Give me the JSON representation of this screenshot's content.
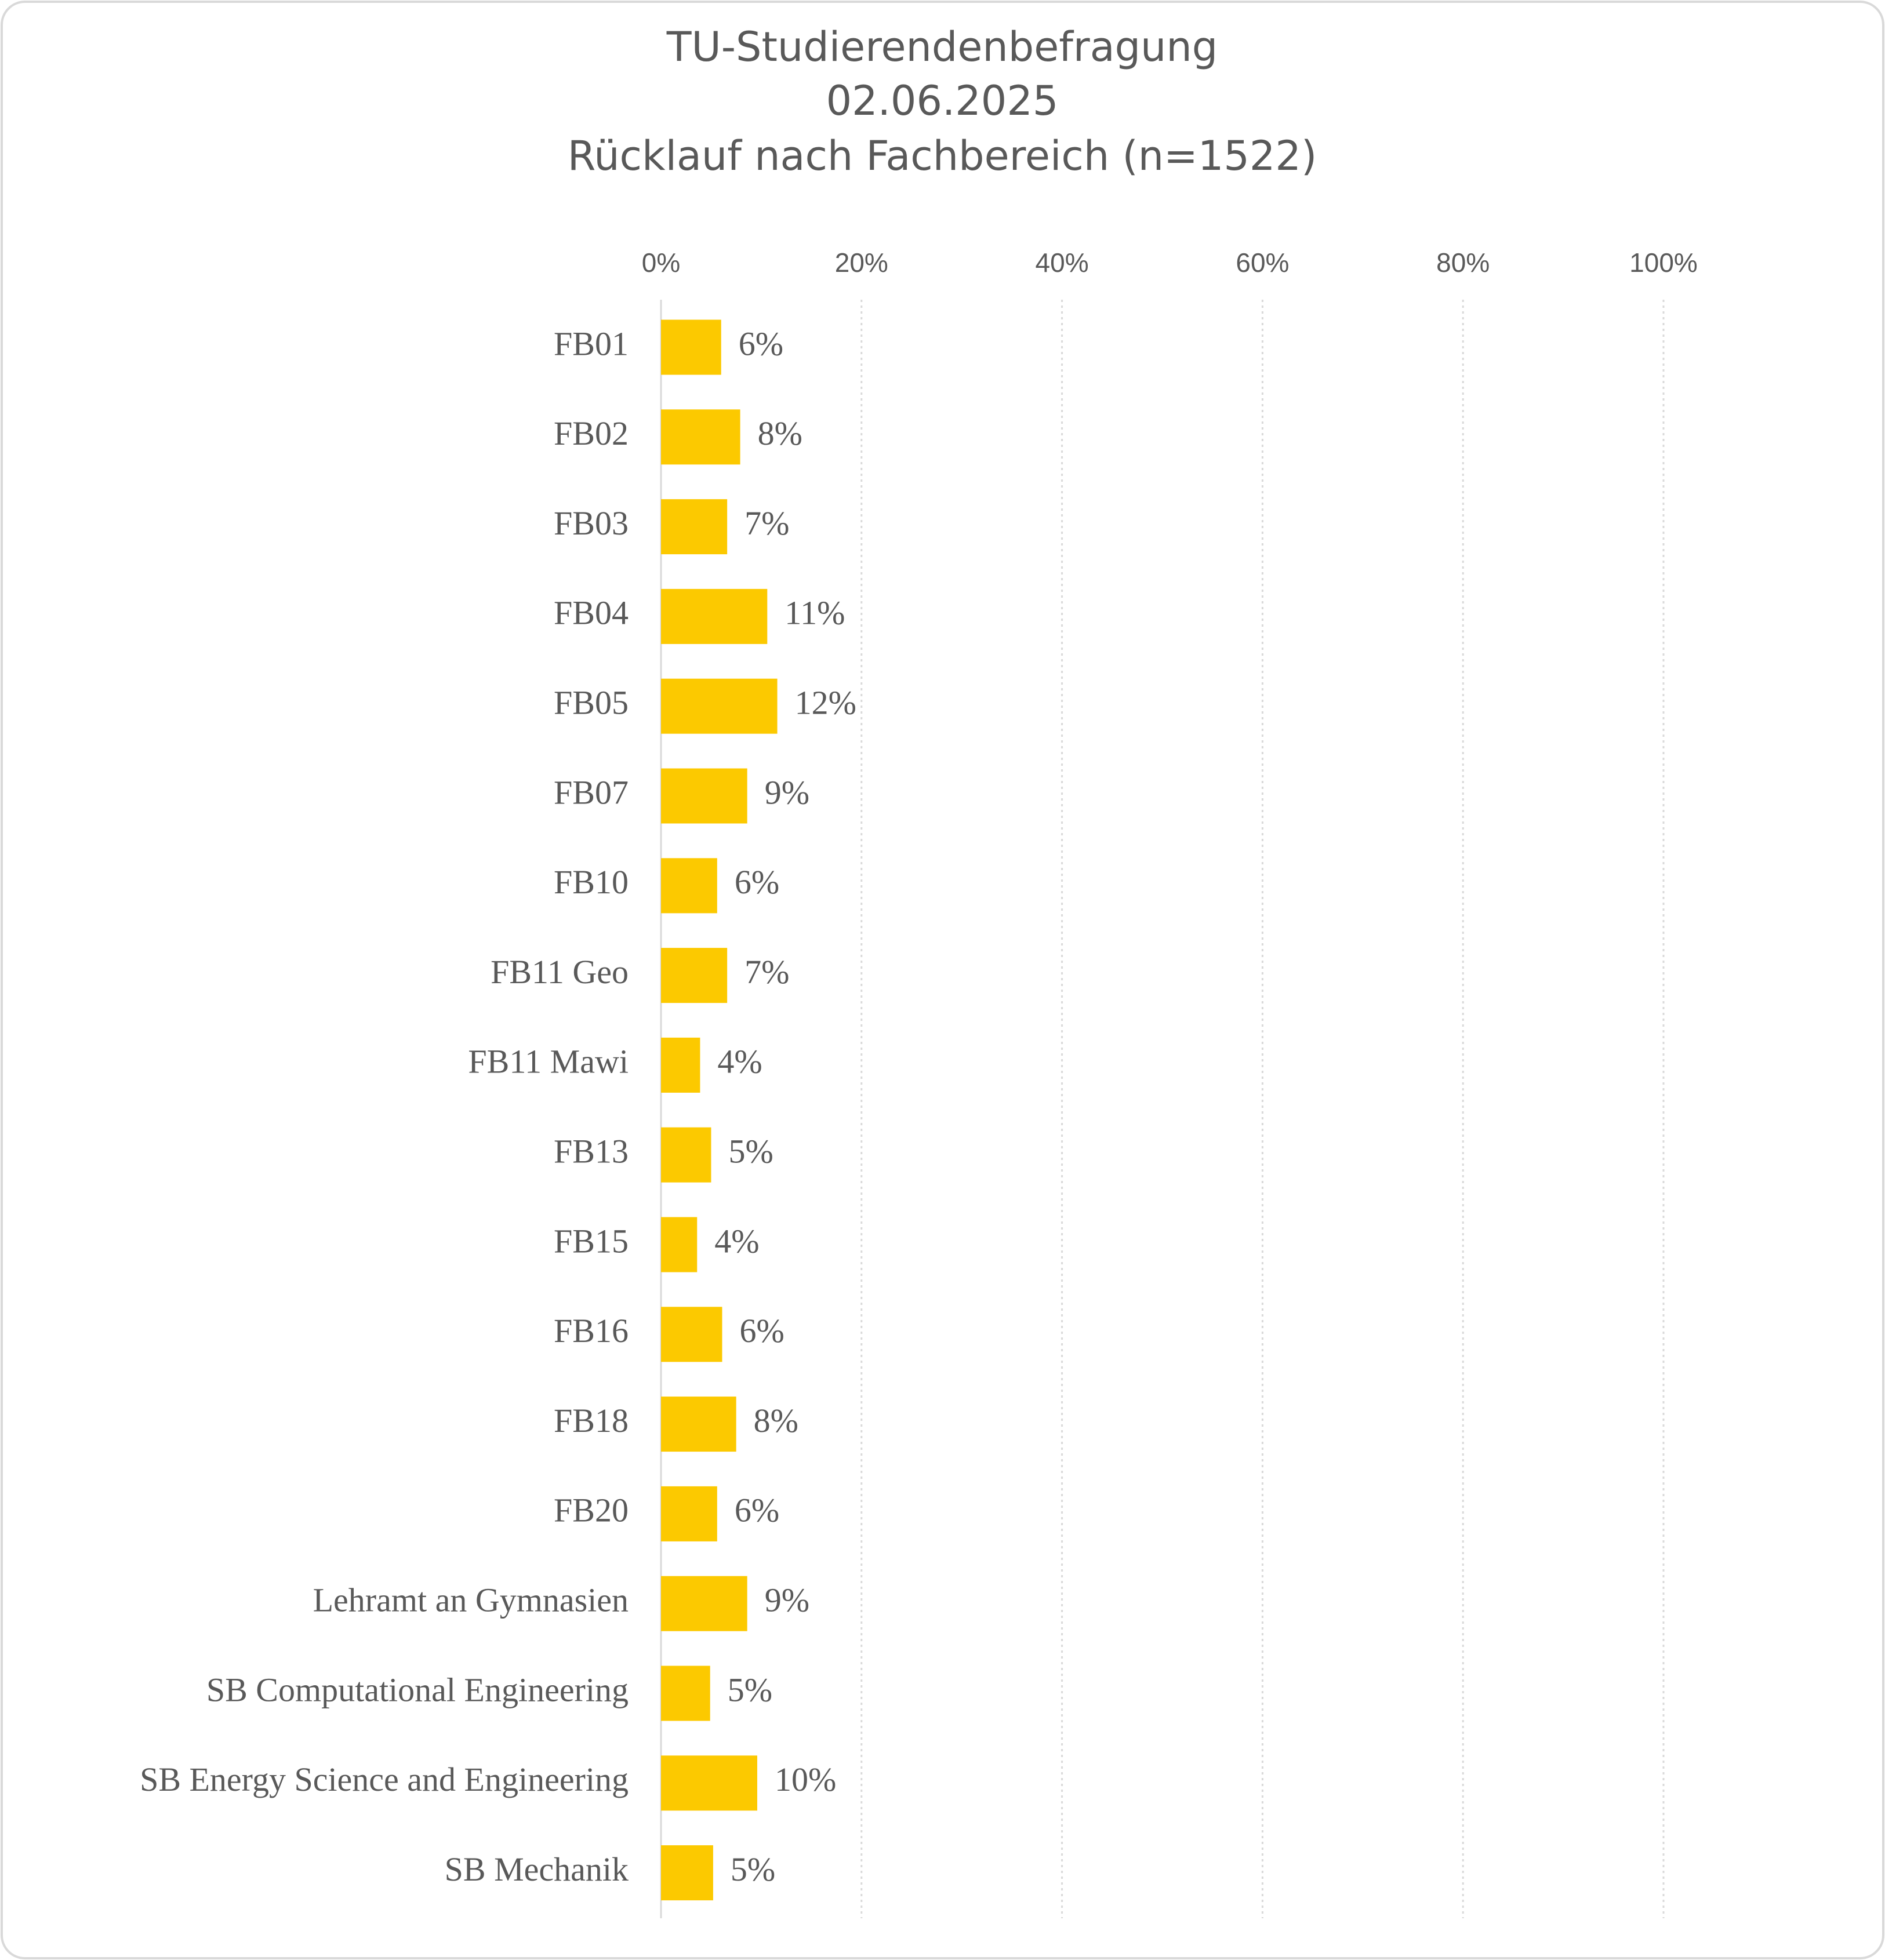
{
  "chart_data": {
    "type": "bar",
    "orientation": "horizontal",
    "title": [
      "TU-Studierendenbefragung",
      "02.06.2025",
      "Rücklauf nach Fachbereich (n=1522)"
    ],
    "categories": [
      "FB01",
      "FB02",
      "FB03",
      "FB04",
      "FB05",
      "FB07",
      "FB10",
      "FB11 Geo",
      "FB11 Mawi",
      "FB13",
      "FB15",
      "FB16",
      "FB18",
      "FB20",
      "Lehramt an Gymnasien",
      "SB Computational Engineering",
      "SB Energy Science and Engineering",
      "SB Mechanik"
    ],
    "values": [
      6.0,
      7.9,
      6.6,
      10.6,
      11.6,
      8.6,
      5.6,
      6.6,
      3.9,
      5.0,
      3.6,
      6.1,
      7.5,
      5.6,
      8.6,
      4.9,
      9.6,
      5.2
    ],
    "value_labels": [
      "6%",
      "8%",
      "7%",
      "11%",
      "12%",
      "9%",
      "6%",
      "7%",
      "4%",
      "5%",
      "4%",
      "6%",
      "8%",
      "6%",
      "9%",
      "5%",
      "10%",
      "5%"
    ],
    "color": "#fcc900",
    "xlim": [
      0,
      100
    ],
    "xticks": [
      {
        "value": 0,
        "label": "0%"
      },
      {
        "value": 20,
        "label": "20%"
      },
      {
        "value": 40,
        "label": "40%"
      },
      {
        "value": 60,
        "label": "60%"
      },
      {
        "value": 80,
        "label": "80%"
      },
      {
        "value": 100,
        "label": "100%"
      }
    ],
    "grid": true
  }
}
